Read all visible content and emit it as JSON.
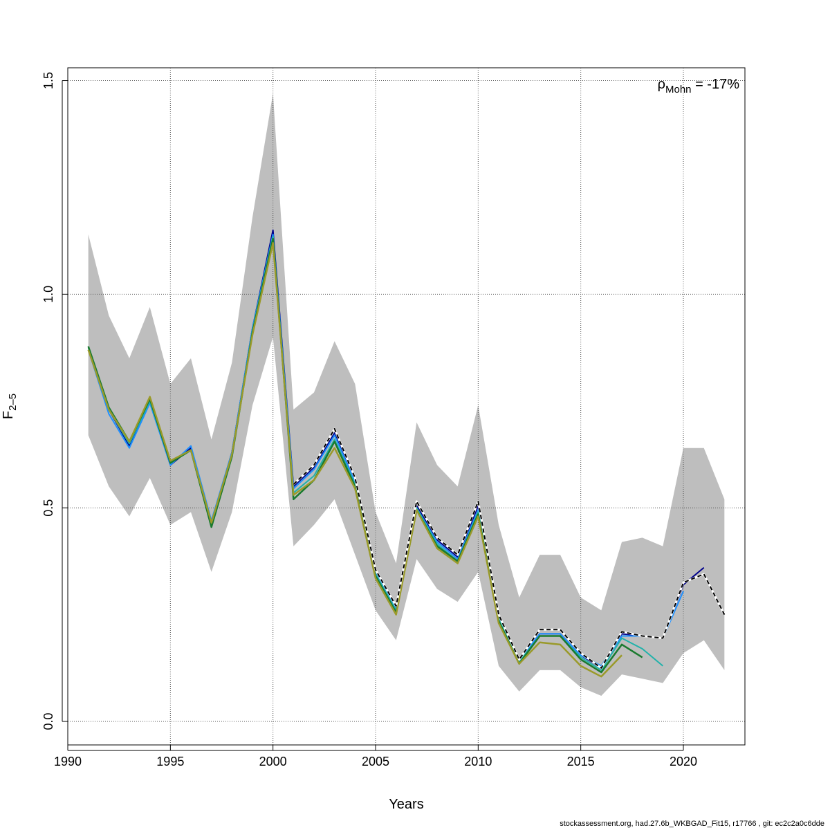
{
  "chart_data": {
    "type": "line",
    "xlabel": "Years",
    "ylabel": {
      "main": "F",
      "sub": "2–5"
    },
    "annotation": {
      "rho": "ρ",
      "sub": "Mohn",
      "value": " = -17%"
    },
    "xlim": [
      1990,
      2023
    ],
    "ylim": [
      -0.055,
      1.53
    ],
    "xticks": [
      1990,
      1995,
      2000,
      2005,
      2010,
      2015,
      2020
    ],
    "yticks": [
      0.0,
      0.5,
      1.0,
      1.5
    ],
    "ytick_labels": [
      "0.0",
      "0.5",
      "1.0",
      "1.5"
    ],
    "grid": true,
    "band_color": "#bebebe",
    "confidence_band": {
      "x": [
        1991,
        1992,
        1993,
        1994,
        1995,
        1996,
        1997,
        1998,
        1999,
        2000,
        2001,
        2002,
        2003,
        2004,
        2005,
        2006,
        2007,
        2008,
        2009,
        2010,
        2011,
        2012,
        2013,
        2014,
        2015,
        2016,
        2017,
        2018,
        2019,
        2020,
        2021,
        2022
      ],
      "upper": [
        1.14,
        0.95,
        0.85,
        0.97,
        0.79,
        0.85,
        0.66,
        0.84,
        1.18,
        1.47,
        0.73,
        0.77,
        0.89,
        0.79,
        0.49,
        0.37,
        0.7,
        0.6,
        0.55,
        0.74,
        0.46,
        0.29,
        0.39,
        0.39,
        0.29,
        0.26,
        0.42,
        0.43,
        0.41,
        0.64,
        0.64,
        0.52
      ],
      "lower": [
        0.67,
        0.55,
        0.48,
        0.57,
        0.46,
        0.49,
        0.35,
        0.49,
        0.74,
        0.9,
        0.41,
        0.46,
        0.52,
        0.39,
        0.26,
        0.19,
        0.38,
        0.31,
        0.28,
        0.35,
        0.13,
        0.07,
        0.12,
        0.12,
        0.08,
        0.06,
        0.11,
        0.1,
        0.09,
        0.16,
        0.19,
        0.12
      ]
    },
    "series": [
      {
        "color": "#00008b",
        "width": 2,
        "dash": "",
        "x": [
          1991,
          1992,
          1993,
          1994,
          1995,
          1996,
          1997,
          1998,
          1999,
          2000,
          2001,
          2002,
          2003,
          2004,
          2005,
          2006,
          2007,
          2008,
          2009,
          2010,
          2011,
          2012,
          2013,
          2014,
          2015,
          2016,
          2017,
          2018,
          2019,
          2020,
          2021
        ],
        "y": [
          0.87,
          0.73,
          0.645,
          0.75,
          0.6,
          0.64,
          0.465,
          0.63,
          0.92,
          1.15,
          0.55,
          0.595,
          0.675,
          0.565,
          0.355,
          0.265,
          0.505,
          0.425,
          0.385,
          0.505,
          0.245,
          0.145,
          0.205,
          0.205,
          0.155,
          0.125,
          0.205,
          0.2,
          0.195,
          0.32,
          0.36
        ]
      },
      {
        "color": "#1e90ff",
        "width": 2,
        "dash": "",
        "x": [
          1991,
          1992,
          1993,
          1994,
          1995,
          1996,
          1997,
          1998,
          1999,
          2000,
          2001,
          2002,
          2003,
          2004,
          2005,
          2006,
          2007,
          2008,
          2009,
          2010,
          2011,
          2012,
          2013,
          2014,
          2015,
          2016,
          2017,
          2018,
          2019,
          2020
        ],
        "y": [
          0.87,
          0.72,
          0.64,
          0.745,
          0.6,
          0.645,
          0.47,
          0.63,
          0.92,
          1.14,
          0.545,
          0.59,
          0.67,
          0.56,
          0.35,
          0.265,
          0.5,
          0.42,
          0.38,
          0.495,
          0.245,
          0.145,
          0.205,
          0.205,
          0.155,
          0.13,
          0.2,
          0.2,
          0.195,
          0.305
        ]
      },
      {
        "color": "#20b2aa",
        "width": 2,
        "dash": "",
        "x": [
          1991,
          1992,
          1993,
          1994,
          1995,
          1996,
          1997,
          1998,
          1999,
          2000,
          2001,
          2002,
          2003,
          2004,
          2005,
          2006,
          2007,
          2008,
          2009,
          2010,
          2011,
          2012,
          2013,
          2014,
          2015,
          2016,
          2017,
          2018,
          2019
        ],
        "y": [
          0.875,
          0.73,
          0.65,
          0.75,
          0.605,
          0.635,
          0.465,
          0.625,
          0.915,
          1.135,
          0.535,
          0.575,
          0.66,
          0.555,
          0.345,
          0.26,
          0.5,
          0.415,
          0.375,
          0.49,
          0.24,
          0.14,
          0.2,
          0.2,
          0.15,
          0.12,
          0.195,
          0.17,
          0.13
        ]
      },
      {
        "color": "#1a7a2e",
        "width": 2.5,
        "dash": "",
        "x": [
          1991,
          1992,
          1993,
          1994,
          1995,
          1996,
          1997,
          1998,
          1999,
          2000,
          2001,
          2002,
          2003,
          2004,
          2005,
          2006,
          2007,
          2008,
          2009,
          2010,
          2011,
          2012,
          2013,
          2014,
          2015,
          2016,
          2017,
          2018
        ],
        "y": [
          0.878,
          0.735,
          0.655,
          0.755,
          0.605,
          0.635,
          0.455,
          0.62,
          0.91,
          1.13,
          0.52,
          0.565,
          0.655,
          0.55,
          0.34,
          0.255,
          0.495,
          0.41,
          0.375,
          0.485,
          0.235,
          0.135,
          0.2,
          0.2,
          0.145,
          0.115,
          0.18,
          0.15
        ]
      },
      {
        "color": "#9a9a2a",
        "width": 2.5,
        "dash": "",
        "x": [
          1991,
          1992,
          1993,
          1994,
          1995,
          1996,
          1997,
          1998,
          1999,
          2000,
          2001,
          2002,
          2003,
          2004,
          2005,
          2006,
          2007,
          2008,
          2009,
          2010,
          2011,
          2012,
          2013,
          2014,
          2015,
          2016,
          2017
        ],
        "y": [
          0.87,
          0.73,
          0.655,
          0.76,
          0.61,
          0.635,
          0.465,
          0.625,
          0.905,
          1.12,
          0.53,
          0.565,
          0.64,
          0.545,
          0.335,
          0.25,
          0.495,
          0.405,
          0.37,
          0.48,
          0.23,
          0.135,
          0.185,
          0.18,
          0.13,
          0.105,
          0.155
        ]
      },
      {
        "color": "#000000",
        "width": 2,
        "dash": "6,4",
        "x": [
          2001,
          2002,
          2003,
          2004,
          2005,
          2006,
          2007,
          2008,
          2009,
          2010,
          2011,
          2012,
          2013,
          2014,
          2015,
          2016,
          2017,
          2018,
          2019,
          2020,
          2021,
          2022
        ],
        "y": [
          0.555,
          0.6,
          0.685,
          0.57,
          0.355,
          0.27,
          0.515,
          0.43,
          0.39,
          0.515,
          0.25,
          0.145,
          0.215,
          0.215,
          0.16,
          0.125,
          0.21,
          0.2,
          0.195,
          0.325,
          0.345,
          0.25
        ]
      }
    ]
  },
  "footer": {
    "text": "stockassessment.org, had.27.6b_WKBGAD_Fit15, r17766 , git: ec2c2a0c6dde"
  }
}
